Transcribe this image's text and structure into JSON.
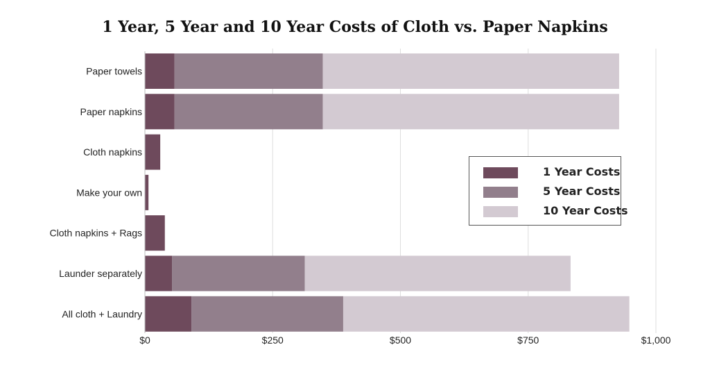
{
  "chart_data": {
    "type": "bar",
    "orientation": "horizontal",
    "stacked": true,
    "title": "1 Year, 5 Year and 10 Year Costs of Cloth vs. Paper Napkins",
    "categories": [
      "Paper towels",
      "Paper napkins",
      "Cloth napkins",
      "Make your own",
      "Cloth napkins + Rags",
      "Launder separately",
      "All cloth + Laundry"
    ],
    "series": [
      {
        "name": "1 Year Costs",
        "color": "#6e4a5c",
        "values": [
          58,
          58,
          30,
          7,
          39,
          53,
          91
        ]
      },
      {
        "name": "5 Year Costs",
        "color": "#927f8c",
        "values": [
          290,
          290,
          0,
          0,
          0,
          260,
          297
        ]
      },
      {
        "name": "10 Year Costs",
        "color": "#d3cad2",
        "values": [
          580,
          580,
          0,
          0,
          0,
          520,
          560
        ]
      }
    ],
    "xlim": [
      0,
      1000
    ],
    "xticks": [
      0,
      250,
      500,
      750,
      1000
    ],
    "xtick_labels": [
      "$0",
      "$250",
      "$500",
      "$750",
      "$1,000"
    ],
    "grid": true,
    "legend_position": "right"
  }
}
